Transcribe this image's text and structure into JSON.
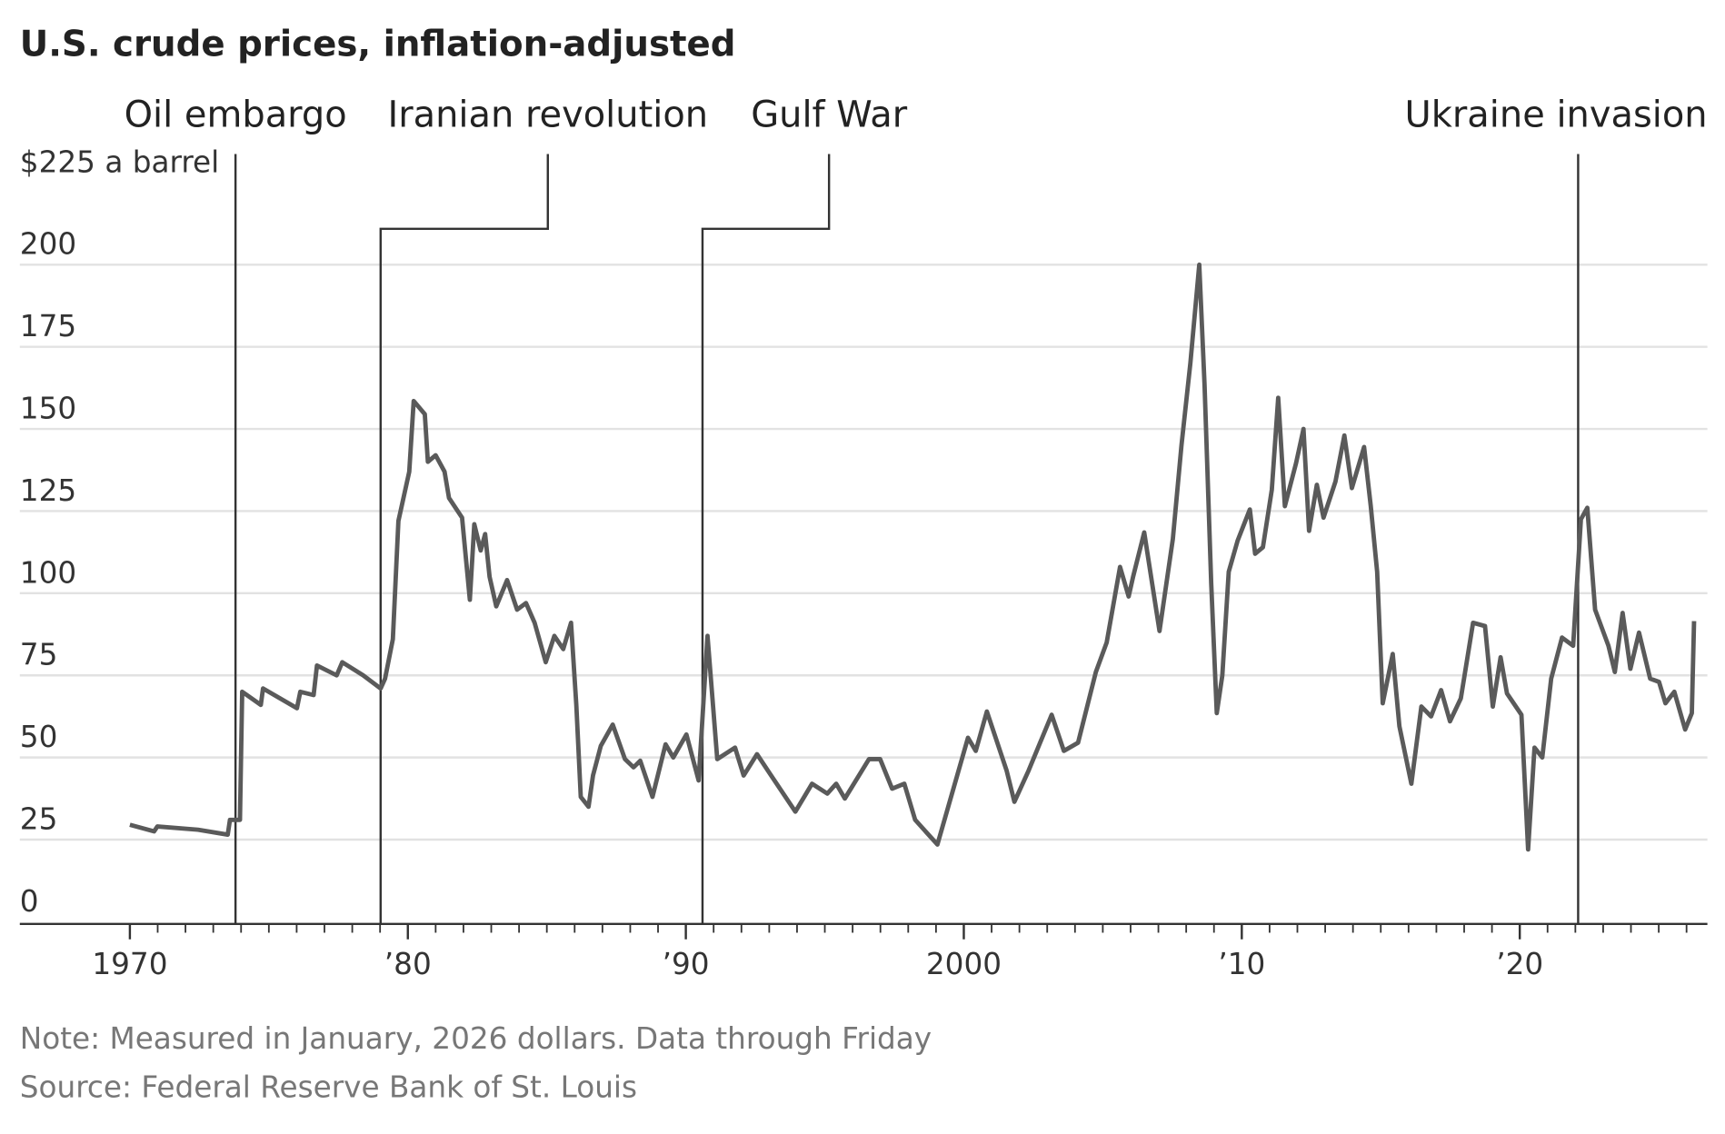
{
  "chart_data": {
    "type": "line",
    "title": "U.S. crude prices, inflation-adjusted",
    "note": "Note: Measured in January, 2026 dollars. Data through Friday",
    "source": "Source: Federal Reserve Bank of St. Louis",
    "xlim": [
      1966.04,
      2026.75
    ],
    "ylim": [
      0,
      225
    ],
    "xticks": [
      {
        "value": 1970,
        "label": "1970"
      },
      {
        "value": 1980,
        "label": "’80"
      },
      {
        "value": 1990,
        "label": "’90"
      },
      {
        "value": 2000,
        "label": "2000"
      },
      {
        "value": 2010,
        "label": "’10"
      },
      {
        "value": 2020,
        "label": "’20"
      }
    ],
    "xminor_ticks": [
      1971,
      1972,
      1973,
      1974,
      1975,
      1976,
      1977,
      1978,
      1979,
      1981,
      1982,
      1983,
      1984,
      1985,
      1986,
      1987,
      1988,
      1989,
      1991,
      1992,
      1993,
      1994,
      1995,
      1996,
      1997,
      1998,
      1999,
      2001,
      2002,
      2003,
      2004,
      2005,
      2006,
      2007,
      2008,
      2009,
      2011,
      2012,
      2013,
      2014,
      2015,
      2016,
      2017,
      2018,
      2019,
      2021,
      2022,
      2023,
      2024,
      2025,
      2026
    ],
    "yticks": [
      0,
      25,
      50,
      75,
      100,
      125,
      150,
      175,
      200,
      {
        "value": 225,
        "label": "$225 a barrel"
      }
    ],
    "grid": true,
    "annotations": [
      {
        "x": 1973.8,
        "label": "Oil embargo"
      },
      {
        "x": 1979.02,
        "label": "Iranian revolution"
      },
      {
        "x": 1990.6,
        "label": "Gulf War"
      },
      {
        "x": 2022.1,
        "label": "Ukraine invasion"
      }
    ],
    "series": [
      {
        "name": "U.S. crude price",
        "color": "#5a5a5a",
        "x": [
          1970.0,
          1970.87,
          1970.99,
          1972.45,
          1973.52,
          1973.6,
          1973.96,
          1974.04,
          1974.71,
          1974.79,
          1976.01,
          1976.13,
          1976.61,
          1976.73,
          1977.44,
          1977.64,
          1978.39,
          1979.02,
          1979.18,
          1979.46,
          1979.66,
          1980.05,
          1980.21,
          1980.61,
          1980.72,
          1981.0,
          1981.32,
          1981.48,
          1981.95,
          1982.23,
          1982.39,
          1982.62,
          1982.78,
          1982.94,
          1983.18,
          1983.57,
          1983.93,
          1984.25,
          1984.56,
          1984.96,
          1985.27,
          1985.59,
          1985.87,
          1986.06,
          1986.22,
          1986.5,
          1986.66,
          1986.94,
          1987.37,
          1987.81,
          1988.12,
          1988.36,
          1988.8,
          1989.27,
          1989.55,
          1990.02,
          1990.46,
          1990.78,
          1991.13,
          1991.77,
          1992.08,
          1992.56,
          1993.03,
          1993.94,
          1994.54,
          1995.09,
          1995.41,
          1995.72,
          1996.59,
          1996.99,
          1997.42,
          1997.86,
          1998.25,
          1999.05,
          1999.44,
          2000.15,
          2000.43,
          2000.83,
          2001.54,
          2001.82,
          2002.33,
          2003.16,
          2003.6,
          2004.11,
          2004.75,
          2005.14,
          2005.62,
          2005.93,
          2006.09,
          2006.49,
          2007.04,
          2007.52,
          2007.83,
          2008.15,
          2008.47,
          2008.66,
          2008.9,
          2009.1,
          2009.3,
          2009.53,
          2009.85,
          2010.29,
          2010.48,
          2010.76,
          2011.08,
          2011.31,
          2011.55,
          2011.95,
          2012.22,
          2012.42,
          2012.7,
          2012.94,
          2013.37,
          2013.69,
          2013.96,
          2014.4,
          2014.64,
          2014.87,
          2015.07,
          2015.43,
          2015.67,
          2016.1,
          2016.46,
          2016.81,
          2017.17,
          2017.49,
          2017.88,
          2018.32,
          2018.75,
          2019.03,
          2019.31,
          2019.54,
          2020.06,
          2020.3,
          2020.53,
          2020.81,
          2021.13,
          2021.52,
          2021.92,
          2022.2,
          2022.43,
          2022.71,
          2023.19,
          2023.42,
          2023.7,
          2023.98,
          2024.29,
          2024.69,
          2025.01,
          2025.24,
          2025.56,
          2025.95,
          2026.19,
          2026.27
        ],
        "values": [
          29.5,
          27.5,
          29,
          28,
          26.5,
          31,
          31,
          70,
          66,
          71,
          65,
          70,
          69,
          78,
          75,
          79,
          75,
          71,
          74,
          86,
          122,
          137,
          158.5,
          154.5,
          140,
          142,
          137,
          129,
          123,
          98,
          121,
          113,
          118,
          105,
          96,
          104,
          95,
          97,
          91,
          79,
          87,
          83,
          91,
          66,
          38,
          35,
          44.5,
          53.5,
          60,
          49.5,
          47,
          49,
          38,
          54,
          50,
          57,
          43,
          87,
          49.5,
          53,
          44.5,
          51,
          45,
          33.5,
          42,
          39,
          42,
          37.5,
          49.5,
          49.5,
          40.5,
          42,
          31,
          23.5,
          35,
          56,
          52,
          64,
          46,
          36.5,
          46,
          63,
          52,
          54.5,
          76,
          85,
          108,
          99,
          105,
          118.5,
          88.5,
          116.5,
          145,
          170,
          200,
          163.5,
          103,
          63.5,
          75,
          106.5,
          116,
          125.5,
          112,
          114,
          131.5,
          159.5,
          126.5,
          139.5,
          150,
          119,
          133,
          123,
          134,
          148,
          132,
          144.5,
          126.5,
          106.5,
          66.5,
          81.5,
          59.5,
          42,
          65.5,
          62.5,
          70.5,
          61,
          68,
          91,
          90,
          65.5,
          80.5,
          69.5,
          63,
          22,
          53,
          50,
          74,
          86.5,
          84,
          122.5,
          126,
          95,
          84,
          76,
          94,
          77,
          88,
          74,
          73,
          66.5,
          70,
          58.5,
          63.5,
          91.5
        ]
      }
    ]
  }
}
